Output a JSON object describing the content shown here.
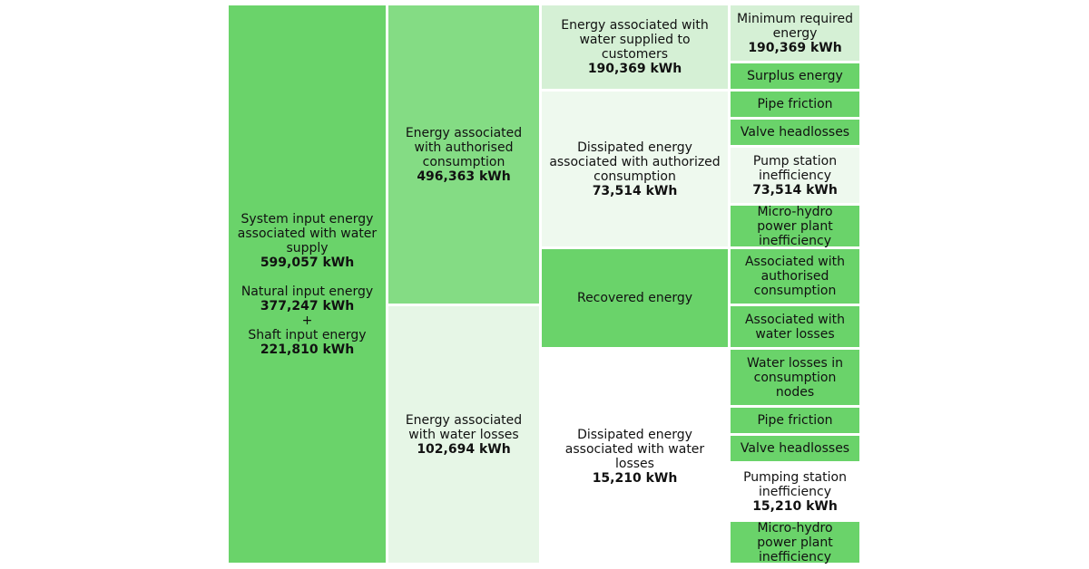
{
  "colors": {
    "strong": "#6ad36a",
    "mid": "#84dc84",
    "light": "#d5f0d5",
    "pale": "#e6f6e6",
    "paler": "#eef9ee"
  },
  "system_input": {
    "label": "System input energy associated with water supply",
    "value": "599,057 kWh",
    "natural_label": "Natural input energy",
    "natural_value": "377,247 kWh",
    "plus": "+",
    "shaft_label": "Shaft input energy",
    "shaft_value": "221,810 kWh"
  },
  "authorised": {
    "label": "Energy associated with authorised consumption",
    "value": "496,363 kWh"
  },
  "water_losses": {
    "label": "Energy associated with water losses",
    "value": "102,694 kWh"
  },
  "supplied": {
    "label": "Energy associated with water supplied to customers",
    "value": "190,369 kWh"
  },
  "dissipated_auth": {
    "label": "Dissipated energy associated with authorized consumption",
    "value": "73,514 kWh"
  },
  "recovered": {
    "label": "Recovered energy"
  },
  "dissipated_loss": {
    "label": "Dissipated energy associated with water losses",
    "value": "15,210 kWh"
  },
  "details": {
    "min_required": {
      "label": "Minimum required energy",
      "value": "190,369 kWh"
    },
    "surplus": {
      "label": "Surplus energy"
    },
    "pipe_friction_1": {
      "label": "Pipe friction"
    },
    "valve_headlosses_1": {
      "label": "Valve headlosses"
    },
    "pump_station": {
      "label": "Pump station inefficiency",
      "value": "73,514 kWh"
    },
    "micro_hydro_1": {
      "label": "Micro-hydro power plant inefficiency"
    },
    "assoc_authorised": {
      "label": "Associated with authorised consumption"
    },
    "assoc_losses": {
      "label": "Associated with water losses"
    },
    "losses_nodes": {
      "label": "Water losses in consumption nodes"
    },
    "pipe_friction_2": {
      "label": "Pipe friction"
    },
    "valve_headlosses_2": {
      "label": "Valve headlosses"
    },
    "pumping_station": {
      "label": "Pumping station inefficiency",
      "value": "15,210 kWh"
    },
    "micro_hydro_2": {
      "label": "Micro-hydro power plant inefficiency"
    }
  }
}
